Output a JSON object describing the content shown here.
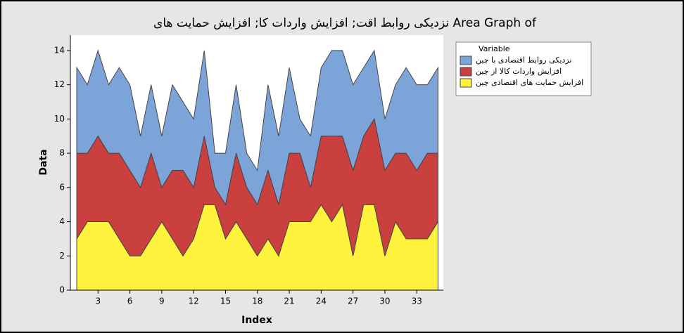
{
  "chart_data": {
    "type": "area",
    "stacked": true,
    "title": "Area Graph of نزدیکی روابط اقت; افزایش واردات کا; افزایش حمایت های",
    "x_label": "Index",
    "y_label": "Data",
    "legend_title": "Variable",
    "x": [
      1,
      2,
      3,
      4,
      5,
      6,
      7,
      8,
      9,
      10,
      11,
      12,
      13,
      14,
      15,
      16,
      17,
      18,
      19,
      20,
      21,
      22,
      23,
      24,
      25,
      26,
      27,
      28,
      29,
      30,
      31,
      32,
      33,
      34,
      35
    ],
    "series": [
      {
        "name": "افزایش حمایت های اقتصادی چین",
        "color": "#fff23c",
        "values": [
          3,
          4,
          4,
          4,
          3,
          2,
          2,
          3,
          4,
          3,
          2,
          3,
          5,
          5,
          3,
          4,
          3,
          2,
          3,
          2,
          4,
          4,
          4,
          5,
          4,
          5,
          2,
          5,
          5,
          2,
          4,
          3,
          3,
          3,
          4
        ]
      },
      {
        "name": "افزایش واردات کالا از چین",
        "color": "#c9403f",
        "values": [
          5,
          4,
          5,
          4,
          5,
          5,
          4,
          5,
          2,
          4,
          5,
          3,
          4,
          1,
          2,
          4,
          3,
          3,
          4,
          3,
          4,
          4,
          2,
          4,
          5,
          4,
          5,
          4,
          5,
          5,
          4,
          5,
          4,
          5,
          4
        ]
      },
      {
        "name": "نزدیکی روابط اقتصادی با چین",
        "color": "#7ca4d8",
        "values": [
          5,
          4,
          5,
          4,
          5,
          5,
          3,
          4,
          3,
          5,
          4,
          4,
          5,
          2,
          3,
          4,
          2,
          2,
          5,
          4,
          5,
          2,
          3,
          4,
          5,
          5,
          5,
          4,
          4,
          3,
          4,
          5,
          5,
          4,
          5
        ]
      }
    ],
    "xlim": [
      0.4,
      35.5
    ],
    "xticks": [
      3,
      6,
      9,
      12,
      15,
      18,
      21,
      24,
      27,
      30,
      33
    ],
    "ylim": [
      0,
      14.9
    ],
    "yticks": [
      0,
      2,
      4,
      6,
      8,
      10,
      12,
      14
    ],
    "legend": "top-right-outside"
  }
}
